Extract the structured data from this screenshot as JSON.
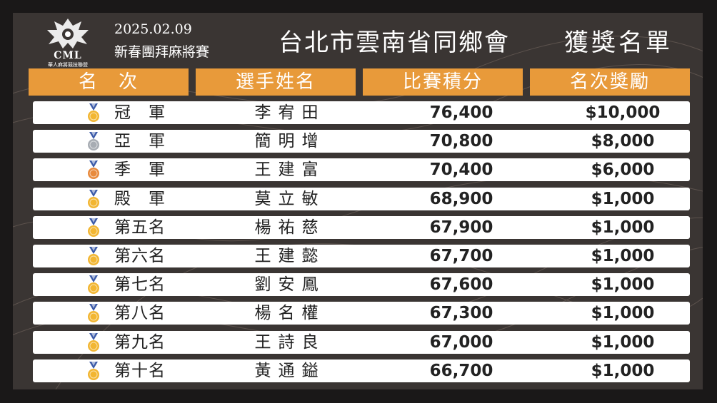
{
  "header": {
    "logo_text": "CML",
    "logo_sub": "華人麻將競技聯盟",
    "date": "2025.02.09",
    "event": "新春團拜麻將賽",
    "title": "台北市雲南省同鄉會",
    "title2": "獲獎名單"
  },
  "columns": [
    "名　次",
    "選手姓名",
    "比賽積分",
    "名次獎勵"
  ],
  "colors": {
    "accent": "#e89a3a",
    "gold": "#f2b632",
    "silver": "#a7acb3",
    "bronze": "#e88a3c",
    "ribbon": "#3b5aa8"
  },
  "rows": [
    {
      "rank": "冠　軍",
      "name": "李宥田",
      "score": "76,400",
      "prize": "$10,000",
      "medal": "gold-medal-icon"
    },
    {
      "rank": "亞　軍",
      "name": "簡明增",
      "score": "70,800",
      "prize": "$8,000",
      "medal": "silver-medal-icon"
    },
    {
      "rank": "季　軍",
      "name": "王建富",
      "score": "70,400",
      "prize": "$6,000",
      "medal": "bronze-medal-icon"
    },
    {
      "rank": "殿　軍",
      "name": "莫立敏",
      "score": "68,900",
      "prize": "$1,000",
      "medal": "gold-medal-icon"
    },
    {
      "rank": "第五名",
      "name": "楊祐慈",
      "score": "67,900",
      "prize": "$1,000",
      "medal": "gold-medal-icon"
    },
    {
      "rank": "第六名",
      "name": "王建懿",
      "score": "67,700",
      "prize": "$1,000",
      "medal": "gold-medal-icon"
    },
    {
      "rank": "第七名",
      "name": "劉安鳳",
      "score": "67,600",
      "prize": "$1,000",
      "medal": "gold-medal-icon"
    },
    {
      "rank": "第八名",
      "name": "楊名權",
      "score": "67,300",
      "prize": "$1,000",
      "medal": "gold-medal-icon"
    },
    {
      "rank": "第九名",
      "name": "王詩良",
      "score": "67,000",
      "prize": "$1,000",
      "medal": "gold-medal-icon"
    },
    {
      "rank": "第十名",
      "name": "黃通鎰",
      "score": "66,700",
      "prize": "$1,000",
      "medal": "gold-medal-icon"
    }
  ]
}
